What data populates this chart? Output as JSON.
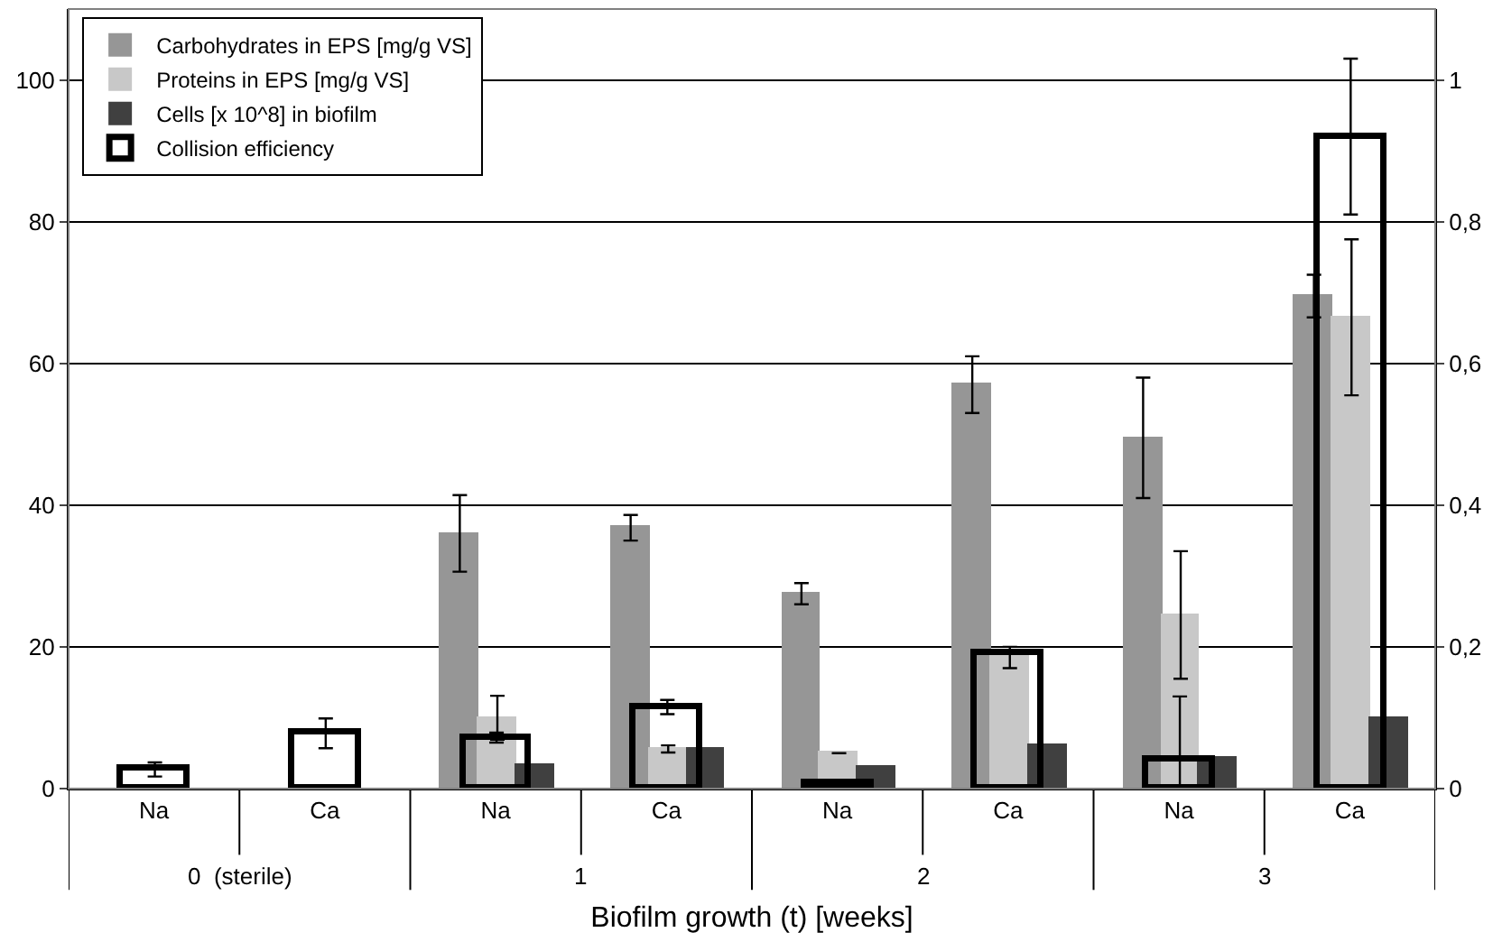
{
  "chart_data": {
    "type": "bar",
    "xlabel": "Biofilm growth (t) [weeks]",
    "categories": [
      "Na",
      "Ca",
      "Na",
      "Ca",
      "Na",
      "Ca",
      "Na",
      "Ca"
    ],
    "annotations": [
      "0  (sterile)",
      "1",
      "2",
      "3"
    ],
    "series": [
      {
        "name": "Carbohydrates in EPS [mg/g VS]",
        "color": "#969696",
        "values": [
          null,
          null,
          36.0,
          36.8,
          27.5,
          57,
          49.5,
          69.5
        ],
        "errors": [
          null,
          null,
          5.4,
          1.8,
          1.5,
          4,
          8.5,
          3
        ]
      },
      {
        "name": "Proteins in EPS [mg/g VS]",
        "color": "#c8c8c8",
        "values": [
          null,
          null,
          10.0,
          5.6,
          5,
          18.5,
          24.5,
          66.5
        ],
        "errors": [
          null,
          null,
          3.1,
          0.5,
          null,
          1.5,
          9,
          11
        ]
      },
      {
        "name": "Cells [x 10^8] in biofilm",
        "color": "#404040",
        "values": [
          null,
          null,
          3.2,
          5.6,
          3,
          6,
          4.3,
          10
        ]
      },
      {
        "name": "Collision efficiency",
        "type": "bar",
        "axis": "y2",
        "color": "#000000",
        "values": [
          0.027,
          0.078,
          0.072,
          0.115,
          0.008,
          0.19,
          0.04,
          0.92
        ],
        "errors": [
          0.01,
          0.021,
          0.007,
          0.01,
          null,
          null,
          [
            0,
            0.13
          ],
          0.11
        ]
      }
    ],
    "ylim": [
      0,
      110
    ],
    "yticks": [
      0,
      20,
      40,
      60,
      80,
      100
    ],
    "y2lim": [
      0,
      1.1
    ],
    "y2ticks": [
      0,
      {
        "value": 0.2,
        "label": "0,2"
      },
      {
        "value": 0.4,
        "label": "0,4"
      },
      {
        "value": 0.6,
        "label": "0,6"
      },
      {
        "value": 0.8,
        "label": "0,8"
      },
      1
    ],
    "grid": "y",
    "legend": "top left"
  }
}
